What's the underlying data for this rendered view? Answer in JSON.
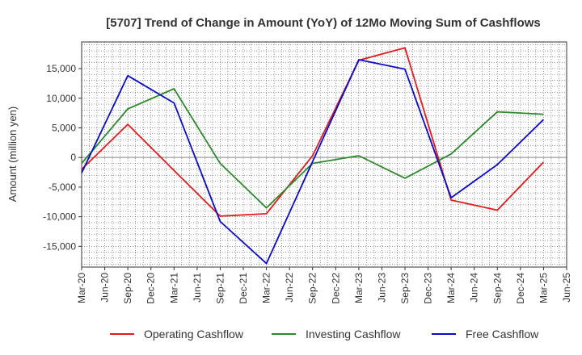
{
  "chart_data": {
    "type": "line",
    "title": "[5707]  Trend of Change in Amount (YoY) of 12Mo Moving Sum of Cashflows",
    "xlabel": "",
    "ylabel": "Amount (million yen)",
    "ylim": [
      -18500,
      19500
    ],
    "yticks": [
      -15000,
      -10000,
      -5000,
      0,
      5000,
      10000,
      15000
    ],
    "ytick_labels": [
      "-15,000",
      "-10,000",
      "-5,000",
      "0",
      "5,000",
      "10,000",
      "15,000"
    ],
    "categories": [
      "Mar-20",
      "Jun-20",
      "Sep-20",
      "Dec-20",
      "Mar-21",
      "Jun-21",
      "Sep-21",
      "Dec-21",
      "Mar-22",
      "Jun-22",
      "Sep-22",
      "Dec-22",
      "Mar-23",
      "Jun-23",
      "Sep-23",
      "Dec-23",
      "Mar-24",
      "Jun-24",
      "Sep-24",
      "Dec-24",
      "Mar-25",
      "Jun-25"
    ],
    "grid": true,
    "legend_position": "bottom",
    "series": [
      {
        "name": "Operating Cashflow",
        "color": "#e31a1c",
        "values": [
          -2000,
          null,
          5600,
          null,
          -2200,
          null,
          -9900,
          null,
          -9500,
          null,
          300,
          null,
          16400,
          null,
          18500,
          null,
          -7200,
          null,
          -8900,
          null,
          -800,
          null
        ]
      },
      {
        "name": "Investing Cashflow",
        "color": "#2a8a2a",
        "values": [
          -1000,
          null,
          8200,
          null,
          11600,
          null,
          -1000,
          null,
          -8500,
          null,
          -1000,
          null,
          300,
          null,
          -3500,
          null,
          600,
          null,
          7700,
          null,
          7300,
          null
        ]
      },
      {
        "name": "Free Cashflow",
        "color": "#0a0acd",
        "values": [
          -2600,
          null,
          13800,
          null,
          9200,
          null,
          -10800,
          null,
          -17900,
          null,
          -700,
          null,
          16500,
          null,
          14900,
          null,
          -6800,
          null,
          -1200,
          null,
          6400,
          null
        ]
      }
    ]
  }
}
